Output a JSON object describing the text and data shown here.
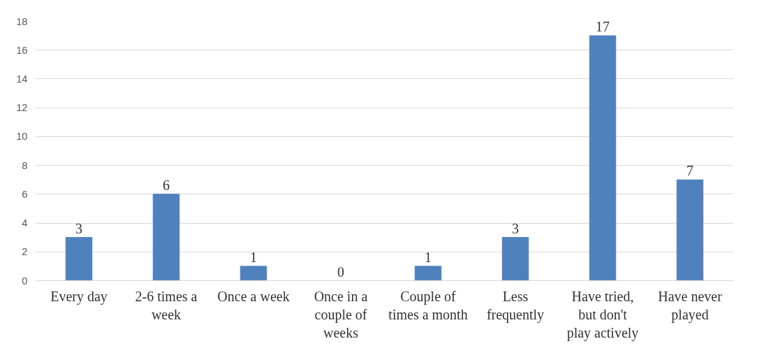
{
  "chart_data": {
    "type": "bar",
    "categories": [
      "Every day",
      "2-6 times a week",
      "Once a week",
      "Once in a couple of weeks",
      "Couple of times a month",
      "Less frequently",
      "Have tried, but don't play actively",
      "Have never played"
    ],
    "values": [
      3,
      6,
      1,
      0,
      1,
      3,
      17,
      7
    ],
    "color": "#4f81bd",
    "ylim": [
      0,
      18
    ],
    "yticks": [
      0,
      2,
      4,
      6,
      8,
      10,
      12,
      14,
      16,
      18
    ],
    "grid": "y",
    "data_labels": true
  }
}
